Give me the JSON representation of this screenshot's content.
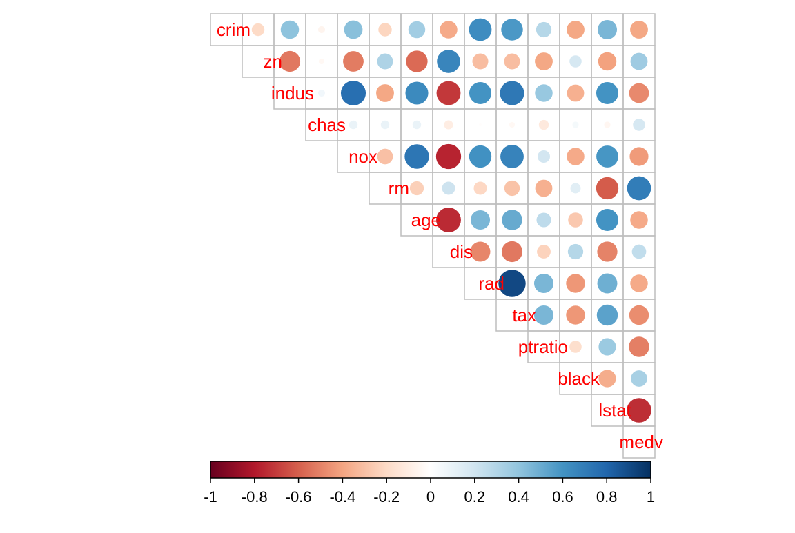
{
  "chart_data": {
    "type": "heatmap",
    "style": "correlation-circles-upper-triangle",
    "variables": [
      "crim",
      "zn",
      "indus",
      "chas",
      "nox",
      "rm",
      "age",
      "dis",
      "rad",
      "tax",
      "ptratio",
      "black",
      "lstat",
      "medv"
    ],
    "matrix": [
      [
        1.0,
        -0.2,
        0.41,
        -0.06,
        0.42,
        -0.22,
        0.35,
        -0.38,
        0.63,
        0.58,
        0.29,
        -0.39,
        0.46,
        -0.39
      ],
      [
        -0.2,
        1.0,
        -0.53,
        -0.04,
        -0.52,
        0.31,
        -0.57,
        0.66,
        -0.31,
        -0.31,
        -0.39,
        0.18,
        -0.41,
        0.36
      ],
      [
        0.41,
        -0.53,
        1.0,
        0.06,
        0.76,
        -0.39,
        0.64,
        -0.71,
        0.6,
        0.72,
        0.38,
        -0.36,
        0.6,
        -0.48
      ],
      [
        -0.06,
        -0.04,
        0.06,
        1.0,
        0.09,
        0.09,
        0.09,
        -0.1,
        -0.01,
        -0.04,
        -0.12,
        0.05,
        -0.05,
        0.18
      ],
      [
        0.42,
        -0.52,
        0.76,
        0.09,
        1.0,
        -0.3,
        0.73,
        -0.77,
        0.61,
        0.67,
        0.19,
        -0.38,
        0.59,
        -0.43
      ],
      [
        -0.22,
        0.31,
        -0.39,
        0.09,
        -0.3,
        1.0,
        -0.24,
        0.21,
        -0.21,
        -0.29,
        -0.36,
        0.13,
        -0.61,
        0.7
      ],
      [
        0.35,
        -0.57,
        0.64,
        0.09,
        0.73,
        -0.24,
        1.0,
        -0.75,
        0.46,
        0.51,
        0.26,
        -0.27,
        0.6,
        -0.38
      ],
      [
        -0.38,
        0.66,
        -0.71,
        -0.1,
        -0.77,
        0.21,
        -0.75,
        1.0,
        -0.49,
        -0.53,
        -0.23,
        0.29,
        -0.5,
        0.25
      ],
      [
        0.63,
        -0.31,
        0.6,
        -0.01,
        0.61,
        -0.21,
        0.46,
        -0.49,
        1.0,
        0.91,
        0.46,
        -0.44,
        0.49,
        -0.38
      ],
      [
        0.58,
        -0.31,
        0.72,
        -0.04,
        0.67,
        -0.29,
        0.51,
        -0.53,
        0.91,
        1.0,
        0.46,
        -0.44,
        0.54,
        -0.47
      ],
      [
        0.29,
        -0.39,
        0.38,
        -0.12,
        0.19,
        -0.36,
        0.26,
        -0.23,
        0.46,
        0.46,
        1.0,
        -0.18,
        0.37,
        -0.51
      ],
      [
        -0.39,
        0.18,
        -0.36,
        0.05,
        -0.38,
        0.13,
        -0.27,
        0.29,
        -0.44,
        -0.44,
        -0.18,
        1.0,
        -0.37,
        0.33
      ],
      [
        0.46,
        -0.41,
        0.6,
        -0.05,
        0.59,
        -0.61,
        0.6,
        -0.5,
        0.49,
        0.54,
        0.37,
        -0.37,
        1.0,
        -0.74
      ],
      [
        -0.39,
        0.36,
        -0.48,
        0.18,
        -0.43,
        0.7,
        -0.38,
        0.25,
        -0.38,
        -0.47,
        -0.51,
        0.33,
        -0.74,
        1.0
      ]
    ],
    "color_scale": {
      "min": -1,
      "max": 1,
      "stops": [
        "#67001F",
        "#B2182B",
        "#D6604D",
        "#F4A582",
        "#FDDBC7",
        "#FFFFFF",
        "#D1E5F0",
        "#92C5DE",
        "#4393C3",
        "#2166AC",
        "#053061"
      ],
      "ticks": [
        "-1",
        "-0.8",
        "-0.6",
        "-0.4",
        "-0.2",
        "0",
        "0.2",
        "0.4",
        "0.6",
        "0.8",
        "1"
      ]
    },
    "label_color": "#FF0000",
    "grid_color": "#BEBEBE",
    "show_diagonal_values": false,
    "grid": true
  }
}
